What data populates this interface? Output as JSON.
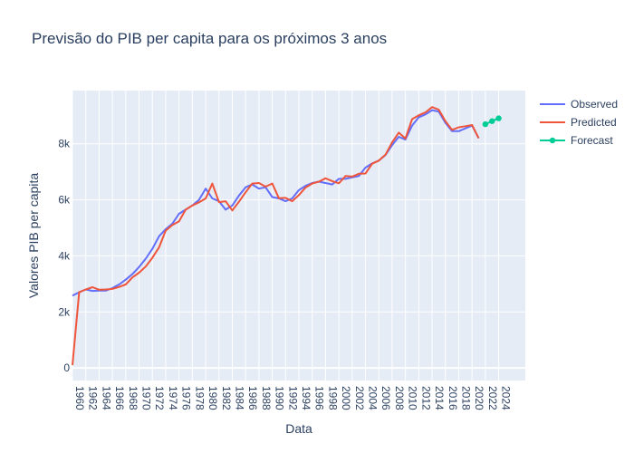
{
  "chart_data": {
    "type": "line",
    "title": "Previsão do PIB per capita para os próximos 3 anos",
    "xlabel": "Data",
    "ylabel": "Valores PIB per capita",
    "xlim": [
      1960,
      2028
    ],
    "ylim": [
      -450,
      9900
    ],
    "x_ticks": [
      1960,
      1962,
      1964,
      1966,
      1968,
      1970,
      1972,
      1974,
      1976,
      1978,
      1980,
      1982,
      1984,
      1986,
      1988,
      1990,
      1992,
      1994,
      1996,
      1998,
      2000,
      2002,
      2004,
      2006,
      2008,
      2010,
      2012,
      2014,
      2016,
      2018,
      2020,
      2022,
      2024
    ],
    "y_ticks": [
      0,
      2000,
      4000,
      6000,
      8000
    ],
    "y_tick_labels": [
      "0",
      "2k",
      "4k",
      "6k",
      "8k"
    ],
    "grid": true,
    "legend_position": "top-right",
    "series": [
      {
        "name": "Observed",
        "color": "#636efa",
        "mode": "lines",
        "x": [
          1960,
          1961,
          1962,
          1963,
          1964,
          1965,
          1966,
          1967,
          1968,
          1969,
          1970,
          1971,
          1972,
          1973,
          1974,
          1975,
          1976,
          1977,
          1978,
          1979,
          1980,
          1981,
          1982,
          1983,
          1984,
          1985,
          1986,
          1987,
          1988,
          1989,
          1990,
          1991,
          1992,
          1993,
          1994,
          1995,
          1996,
          1997,
          1998,
          1999,
          2000,
          2001,
          2002,
          2003,
          2004,
          2005,
          2006,
          2007,
          2008,
          2009,
          2010,
          2011,
          2012,
          2013,
          2014,
          2015,
          2016,
          2017,
          2018,
          2019,
          2020,
          2021
        ],
        "y": [
          2580,
          2700,
          2800,
          2750,
          2760,
          2760,
          2850,
          2980,
          3150,
          3350,
          3600,
          3900,
          4250,
          4700,
          4950,
          5150,
          5500,
          5650,
          5800,
          6000,
          6400,
          6050,
          5950,
          5650,
          5800,
          6150,
          6450,
          6550,
          6400,
          6450,
          6100,
          6050,
          5950,
          6050,
          6350,
          6500,
          6600,
          6650,
          6600,
          6550,
          6750,
          6750,
          6800,
          6850,
          7150,
          7300,
          7400,
          7600,
          7950,
          8250,
          8150,
          8650,
          8950,
          9050,
          9200,
          9150,
          8750,
          8450,
          8450,
          8550,
          8650,
          8200
        ]
      },
      {
        "name": "Predicted",
        "color": "#ef553b",
        "mode": "lines",
        "x": [
          1960,
          1961,
          1962,
          1963,
          1964,
          1965,
          1966,
          1967,
          1968,
          1969,
          1970,
          1971,
          1972,
          1973,
          1974,
          1975,
          1976,
          1977,
          1978,
          1979,
          1980,
          1981,
          1982,
          1983,
          1984,
          1985,
          1986,
          1987,
          1988,
          1989,
          1990,
          1991,
          1992,
          1993,
          1994,
          1995,
          1996,
          1997,
          1998,
          1999,
          2000,
          2001,
          2002,
          2003,
          2004,
          2005,
          2006,
          2007,
          2008,
          2009,
          2010,
          2011,
          2012,
          2013,
          2014,
          2015,
          2016,
          2017,
          2018,
          2019,
          2020,
          2021
        ],
        "y": [
          100,
          2700,
          2800,
          2880,
          2790,
          2800,
          2820,
          2890,
          2980,
          3230,
          3400,
          3620,
          3930,
          4300,
          4900,
          5100,
          5230,
          5650,
          5800,
          5910,
          6050,
          6580,
          5920,
          5950,
          5620,
          5930,
          6270,
          6580,
          6600,
          6470,
          6580,
          6060,
          6070,
          5950,
          6170,
          6440,
          6580,
          6650,
          6770,
          6670,
          6590,
          6850,
          6830,
          6930,
          6940,
          7290,
          7400,
          7610,
          8050,
          8400,
          8190,
          8880,
          9020,
          9120,
          9310,
          9220,
          8810,
          8500,
          8590,
          8630,
          8670,
          8200
        ]
      },
      {
        "name": "Forecast",
        "color": "#00cc96",
        "mode": "lines+markers",
        "x": [
          2022,
          2023,
          2024
        ],
        "y": [
          8700,
          8810,
          8910
        ]
      }
    ]
  }
}
